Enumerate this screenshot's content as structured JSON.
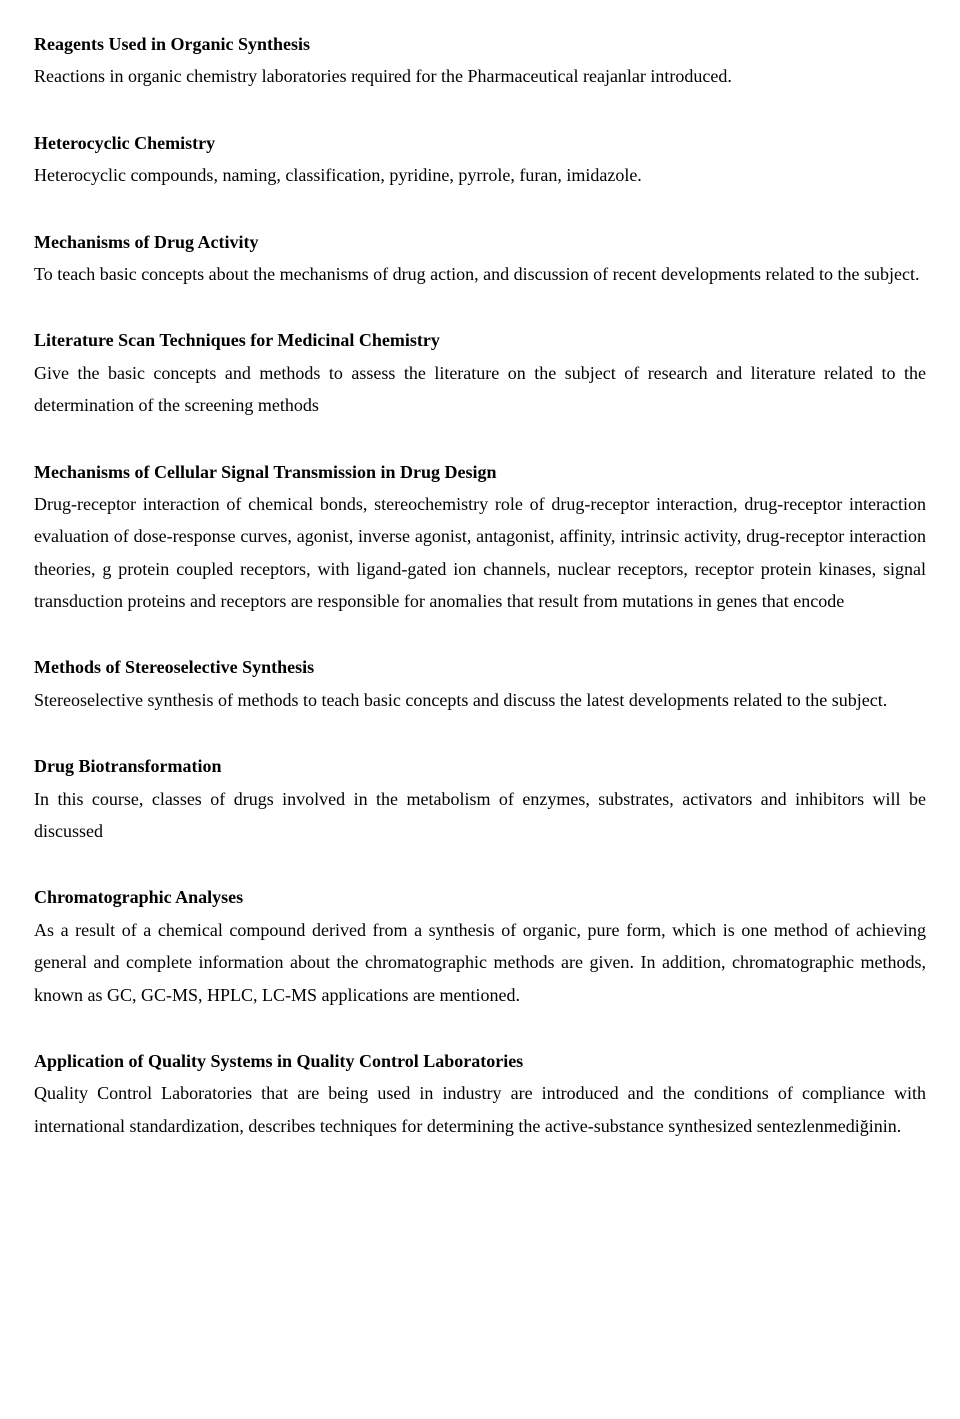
{
  "sections": [
    {
      "title": "Reagents Used in Organic Synthesis",
      "body": "Reactions in organic chemistry laboratories required for the Pharmaceutical reajanlar introduced."
    },
    {
      "title": "Heterocyclic Chemistry",
      "body": "Heterocyclic compounds, naming, classification, pyridine, pyrrole, furan, imidazole."
    },
    {
      "title": "Mechanisms of Drug Activity",
      "body": "To teach basic concepts about the mechanisms of drug action, and discussion of recent developments related to the subject."
    },
    {
      "title": "Literature Scan Techniques for Medicinal Chemistry",
      "body": "Give the basic concepts and methods to assess the literature on the subject of research and literature related to the determination of the screening methods"
    },
    {
      "title": "Mechanisms of Cellular Signal Transmission in Drug Design",
      "body": "Drug-receptor interaction of chemical bonds, stereochemistry role of drug-receptor interaction, drug-receptor interaction evaluation of dose-response curves, agonist, inverse agonist, antagonist, affinity, intrinsic activity, drug-receptor interaction theories, g protein coupled receptors, with ligand-gated ion channels, nuclear receptors, receptor protein kinases, signal transduction proteins and receptors are responsible for anomalies that result from mutations in genes that encode"
    },
    {
      "title": "Methods of Stereoselective Synthesis",
      "body": "Stereoselective synthesis of methods to teach basic concepts and discuss the latest developments related to the subject."
    },
    {
      "title": "Drug Biotransformation",
      "body": "In this course, classes of drugs involved in the metabolism of enzymes, substrates, activators and inhibitors will be discussed"
    },
    {
      "title": "Chromatographic Analyses",
      "body": "As a result of a chemical compound derived from a synthesis of organic, pure form, which is one method of achieving general and complete information about the chromatographic methods are given. In addition, chromatographic methods, known as GC, GC-MS, HPLC, LC-MS applications are mentioned."
    },
    {
      "title": "Application of Quality Systems in Quality Control Laboratories",
      "body": "Quality Control Laboratories that are being used in industry are introduced and the conditions of compliance with international standardization, describes techniques for determining the active-substance synthesized sentezlenmediğinin."
    }
  ]
}
